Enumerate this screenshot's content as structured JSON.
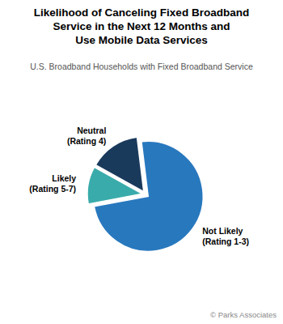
{
  "chart_data": {
    "type": "pie",
    "title": "Likelihood of Canceling Fixed Broadband\nService in the Next 12 Months and\nUse Mobile Data Services",
    "subtitle": "U.S. Broadband Households with Fixed Broadband Service",
    "categories": [
      "Not Likely\n(Rating 1-3)",
      "Likely\n(Rating 5-7)",
      "Neutral\n(Rating 4)"
    ],
    "values": [
      74,
      11,
      15
    ],
    "colors": [
      "#2878be",
      "#3aabab",
      "#1a3a5c"
    ],
    "annotations": [
      "© Parks Associates"
    ]
  }
}
